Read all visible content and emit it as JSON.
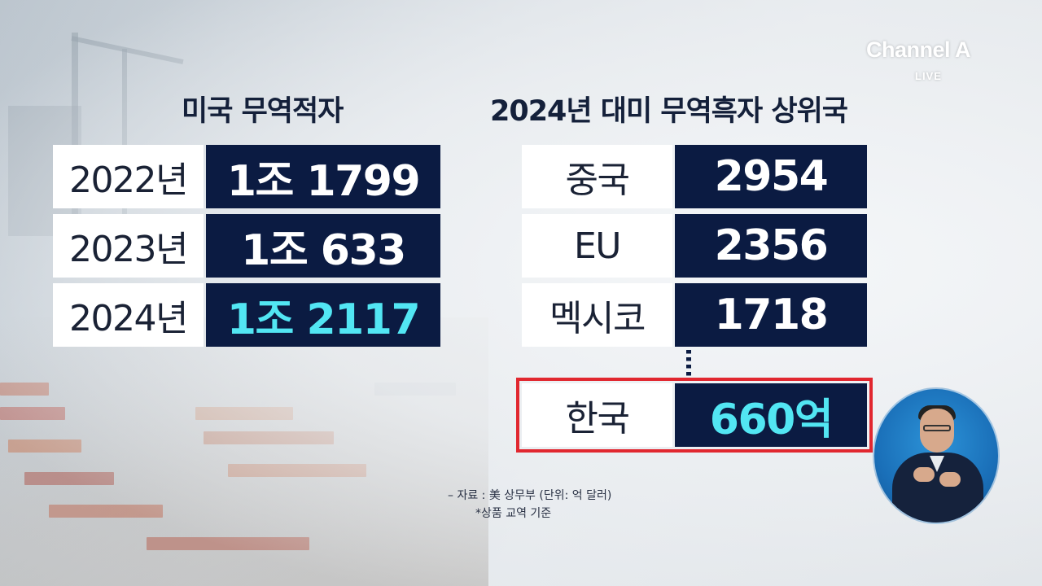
{
  "logo": {
    "brand": "Channel A",
    "live": "LIVE"
  },
  "left": {
    "title": "미국 무역적자",
    "rows": [
      {
        "label": "2022년",
        "value": "1조 1799"
      },
      {
        "label": "2023년",
        "value": "1조 633"
      },
      {
        "label": "2024년",
        "value": "1조 2117"
      }
    ]
  },
  "right": {
    "title": "2024년 대미 무역흑자 상위국",
    "rows": [
      {
        "label": "중국",
        "value": "2954"
      },
      {
        "label": "EU",
        "value": "2356"
      },
      {
        "label": "멕시코",
        "value": "1718"
      }
    ],
    "highlight": {
      "label": "한국",
      "value": "660억"
    }
  },
  "notes": {
    "line1": "– 자료 : 美 상무부 (단위: 억 달러)",
    "line2": "*상품 교역 기준"
  },
  "colors": {
    "value_bg": "#0b1b42",
    "highlight_text": "#52e6f3",
    "highlight_border": "#e1272f"
  }
}
